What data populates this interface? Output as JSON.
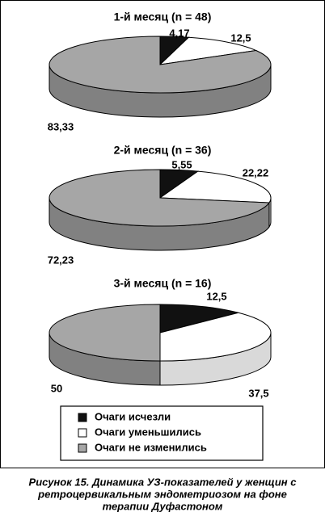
{
  "chart_data": [
    {
      "type": "pie",
      "title": "1-й месяц (n = 48)",
      "values": [
        4.17,
        12.5,
        83.33
      ],
      "value_labels": [
        "4,17",
        "12,5",
        "83,33"
      ],
      "colors": [
        "#111111",
        "#ffffff",
        "#a6a6a6"
      ]
    },
    {
      "type": "pie",
      "title": "2-й месяц (n = 36)",
      "values": [
        5.55,
        22.22,
        72.23
      ],
      "value_labels": [
        "5,55",
        "22,22",
        "72,23"
      ],
      "colors": [
        "#111111",
        "#ffffff",
        "#a6a6a6"
      ]
    },
    {
      "type": "pie",
      "title": "3-й месяц (n = 16)",
      "values": [
        12.5,
        37.5,
        50
      ],
      "value_labels": [
        "12,5",
        "37,5",
        "50"
      ],
      "colors": [
        "#111111",
        "#ffffff",
        "#a6a6a6"
      ]
    }
  ],
  "legend": {
    "entries": [
      {
        "name": "Очаги исчезли",
        "color": "#111111"
      },
      {
        "name": "Очаги уменьшились",
        "color": "#ffffff"
      },
      {
        "name": "Очаги не изменились",
        "color": "#a6a6a6"
      }
    ]
  },
  "caption": [
    "Рисунок 15. Динамика УЗ-показателей у женщин с",
    "ретроцервикальным эндометриозом на фоне",
    "терапии Дуфастоном"
  ]
}
